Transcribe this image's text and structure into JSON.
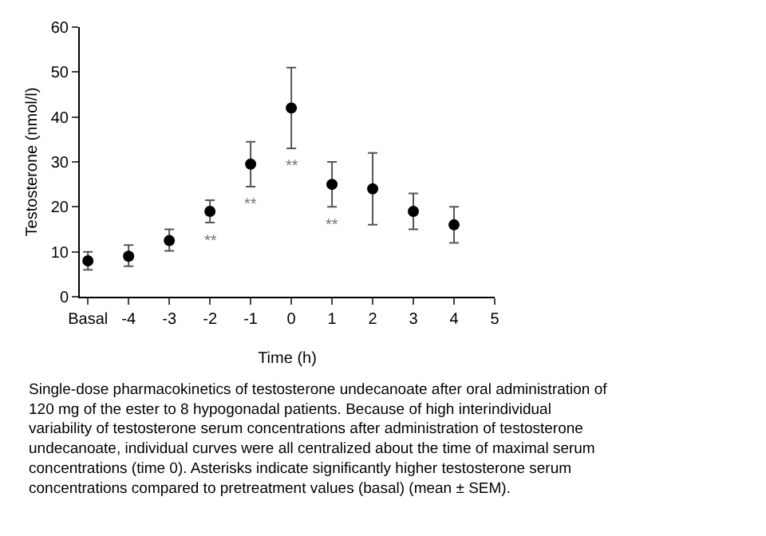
{
  "chart_data": {
    "type": "scatter",
    "xlabel": "Time (h)",
    "ylabel": "Testosterone (nmol/l)",
    "x": [
      -5,
      -4,
      -3,
      -2,
      -1,
      0,
      1,
      2,
      3,
      4
    ],
    "series": [
      {
        "color": "#000000",
        "values": [
          8,
          9,
          12.5,
          19,
          29.5,
          42,
          25,
          24,
          19,
          16
        ],
        "errors": [
          [
            6,
            10
          ],
          [
            6.8,
            11.5
          ],
          [
            10.2,
            15
          ],
          [
            16.5,
            21.5
          ],
          [
            24.5,
            34.5
          ],
          [
            33,
            51
          ],
          [
            20,
            30
          ],
          [
            16,
            32
          ],
          [
            15,
            23
          ],
          [
            12,
            20
          ]
        ]
      }
    ],
    "xlim": [
      -5.2,
      5
    ],
    "xticks": [
      {
        "value": -5,
        "label": "Basal"
      },
      -4,
      -3,
      -2,
      -1,
      0,
      1,
      2,
      3,
      4,
      5
    ],
    "ylim": [
      0,
      60
    ],
    "yticks": [
      0,
      10,
      20,
      30,
      40,
      50,
      60
    ],
    "marker": "circle",
    "annotations": [
      {
        "text": "**",
        "x": -2,
        "y": 16.5
      },
      {
        "text": "**",
        "x": -1,
        "y": 24.5
      },
      {
        "text": "**",
        "x": 0,
        "y": 33
      },
      {
        "text": "**",
        "x": 1,
        "y": 20
      },
      "Single-dose pharmacokinetics of testosterone undecanoate after oral administration of 120 mg of the ester to 8 hypogonadal patients. Because of high interindividual variability of testosterone serum concentrations after administration of testosterone undecanoate, individual curves were all centralized about the time of maximal serum concentrations (time 0). Asterisks indicate significantly higher testosterone serum concentrations compared to pretreatment values (basal) (mean ± SEM)."
    ]
  }
}
